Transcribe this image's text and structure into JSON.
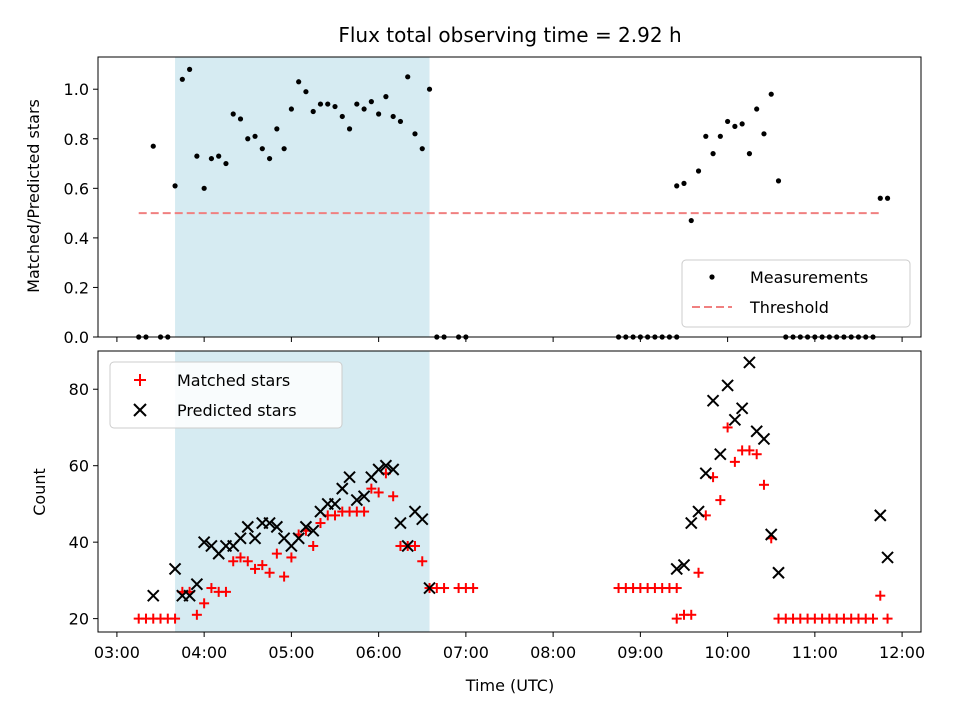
{
  "chart_data": [
    {
      "type": "scatter",
      "title": "Flux total observing time = 2.92 h",
      "xlabel": "",
      "ylabel": "Matched/Predicted stars",
      "ylim": [
        0,
        1.13
      ],
      "xlim": [
        "03:00",
        "12:00"
      ],
      "yticks": [
        "0.0",
        "0.2",
        "0.4",
        "0.6",
        "0.8",
        "1.0"
      ],
      "shaded_span": [
        "03:40",
        "06:35"
      ],
      "shade_color": "#add8e6",
      "legend": {
        "placement": "lower right",
        "entries": [
          "Measurements",
          "Threshold"
        ]
      },
      "series": [
        {
          "name": "Measurements",
          "marker": "dot",
          "color": "#000000",
          "points": [
            [
              "03:15",
              0
            ],
            [
              "03:20",
              0
            ],
            [
              "03:25",
              0.77
            ],
            [
              "03:30",
              0
            ],
            [
              "03:35",
              0
            ],
            [
              "03:40",
              0.61
            ],
            [
              "03:45",
              1.04
            ],
            [
              "03:50",
              1.08
            ],
            [
              "03:55",
              0.73
            ],
            [
              "04:00",
              0.6
            ],
            [
              "04:05",
              0.72
            ],
            [
              "04:10",
              0.73
            ],
            [
              "04:15",
              0.7
            ],
            [
              "04:20",
              0.9
            ],
            [
              "04:25",
              0.88
            ],
            [
              "04:30",
              0.8
            ],
            [
              "04:35",
              0.81
            ],
            [
              "04:40",
              0.76
            ],
            [
              "04:45",
              0.72
            ],
            [
              "04:50",
              0.84
            ],
            [
              "04:55",
              0.76
            ],
            [
              "05:00",
              0.92
            ],
            [
              "05:05",
              1.03
            ],
            [
              "05:10",
              0.99
            ],
            [
              "05:15",
              0.91
            ],
            [
              "05:20",
              0.94
            ],
            [
              "05:25",
              0.94
            ],
            [
              "05:30",
              0.93
            ],
            [
              "05:35",
              0.89
            ],
            [
              "05:40",
              0.84
            ],
            [
              "05:45",
              0.94
            ],
            [
              "05:50",
              0.92
            ],
            [
              "05:55",
              0.95
            ],
            [
              "06:00",
              0.9
            ],
            [
              "06:05",
              0.97
            ],
            [
              "06:10",
              0.89
            ],
            [
              "06:15",
              0.87
            ],
            [
              "06:20",
              1.05
            ],
            [
              "06:25",
              0.82
            ],
            [
              "06:30",
              0.76
            ],
            [
              "06:35",
              1.0
            ],
            [
              "06:40",
              0
            ],
            [
              "06:45",
              0
            ],
            [
              "06:55",
              0
            ],
            [
              "07:00",
              0
            ],
            [
              "08:45",
              0
            ],
            [
              "08:50",
              0
            ],
            [
              "08:55",
              0
            ],
            [
              "09:00",
              0
            ],
            [
              "09:05",
              0
            ],
            [
              "09:10",
              0
            ],
            [
              "09:15",
              0
            ],
            [
              "09:20",
              0
            ],
            [
              "09:25",
              0
            ],
            [
              "09:25",
              0.61
            ],
            [
              "09:30",
              0.62
            ],
            [
              "09:35",
              0.47
            ],
            [
              "09:40",
              0.67
            ],
            [
              "09:45",
              0.81
            ],
            [
              "09:50",
              0.74
            ],
            [
              "09:55",
              0.81
            ],
            [
              "10:00",
              0.87
            ],
            [
              "10:05",
              0.85
            ],
            [
              "10:10",
              0.86
            ],
            [
              "10:15",
              0.74
            ],
            [
              "10:20",
              0.92
            ],
            [
              "10:25",
              0.82
            ],
            [
              "10:30",
              0.98
            ],
            [
              "10:35",
              0.63
            ],
            [
              "10:40",
              0
            ],
            [
              "10:45",
              0
            ],
            [
              "10:50",
              0
            ],
            [
              "10:55",
              0
            ],
            [
              "11:00",
              0
            ],
            [
              "11:05",
              0
            ],
            [
              "11:10",
              0
            ],
            [
              "11:15",
              0
            ],
            [
              "11:20",
              0
            ],
            [
              "11:25",
              0
            ],
            [
              "11:30",
              0
            ],
            [
              "11:35",
              0
            ],
            [
              "11:40",
              0
            ],
            [
              "11:45",
              0.56
            ],
            [
              "11:50",
              0.56
            ]
          ]
        },
        {
          "name": "Threshold",
          "marker": "dashed-line",
          "color": "#f08080",
          "points": [
            [
              "03:15",
              0.5
            ],
            [
              "11:45",
              0.5
            ]
          ]
        }
      ]
    },
    {
      "type": "scatter",
      "title": "",
      "xlabel": "Time (UTC)",
      "ylabel": "Count",
      "ylim": [
        16.5,
        90
      ],
      "xlim": [
        "03:00",
        "12:00"
      ],
      "xticks": [
        "03:00",
        "04:00",
        "05:00",
        "06:00",
        "07:00",
        "08:00",
        "09:00",
        "10:00",
        "11:00",
        "12:00"
      ],
      "yticks": [
        "20",
        "40",
        "60",
        "80"
      ],
      "shaded_span": [
        "03:40",
        "06:35"
      ],
      "shade_color": "#add8e6",
      "legend": {
        "placement": "upper left",
        "entries": [
          "Matched stars",
          "Predicted stars"
        ]
      },
      "series": [
        {
          "name": "Matched stars",
          "marker": "plus",
          "color": "#ff0000",
          "points": [
            [
              "03:15",
              20
            ],
            [
              "03:20",
              20
            ],
            [
              "03:25",
              20
            ],
            [
              "03:30",
              20
            ],
            [
              "03:35",
              20
            ],
            [
              "03:40",
              20
            ],
            [
              "03:45",
              27
            ],
            [
              "03:50",
              27
            ],
            [
              "03:55",
              21
            ],
            [
              "04:00",
              24
            ],
            [
              "04:05",
              28
            ],
            [
              "04:10",
              27
            ],
            [
              "04:15",
              27
            ],
            [
              "04:20",
              35
            ],
            [
              "04:25",
              36
            ],
            [
              "04:30",
              35
            ],
            [
              "04:35",
              33
            ],
            [
              "04:40",
              34
            ],
            [
              "04:45",
              32
            ],
            [
              "04:50",
              37
            ],
            [
              "04:55",
              31
            ],
            [
              "05:00",
              36
            ],
            [
              "05:05",
              42
            ],
            [
              "05:10",
              43
            ],
            [
              "05:15",
              39
            ],
            [
              "05:20",
              45
            ],
            [
              "05:25",
              47
            ],
            [
              "05:30",
              47
            ],
            [
              "05:35",
              48
            ],
            [
              "05:40",
              48
            ],
            [
              "05:45",
              48
            ],
            [
              "05:50",
              48
            ],
            [
              "05:55",
              54
            ],
            [
              "06:00",
              53
            ],
            [
              "06:05",
              58
            ],
            [
              "06:10",
              52
            ],
            [
              "06:15",
              39
            ],
            [
              "06:20",
              39
            ],
            [
              "06:25",
              39
            ],
            [
              "06:30",
              35
            ],
            [
              "06:35",
              28
            ],
            [
              "06:40",
              28
            ],
            [
              "06:45",
              28
            ],
            [
              "06:55",
              28
            ],
            [
              "07:00",
              28
            ],
            [
              "07:05",
              28
            ],
            [
              "08:45",
              28
            ],
            [
              "08:50",
              28
            ],
            [
              "08:55",
              28
            ],
            [
              "09:00",
              28
            ],
            [
              "09:05",
              28
            ],
            [
              "09:10",
              28
            ],
            [
              "09:15",
              28
            ],
            [
              "09:20",
              28
            ],
            [
              "09:25",
              28
            ],
            [
              "09:25",
              20
            ],
            [
              "09:30",
              21
            ],
            [
              "09:35",
              21
            ],
            [
              "09:40",
              32
            ],
            [
              "09:45",
              47
            ],
            [
              "09:50",
              57
            ],
            [
              "09:55",
              51
            ],
            [
              "10:00",
              70
            ],
            [
              "10:05",
              61
            ],
            [
              "10:10",
              64
            ],
            [
              "10:15",
              64
            ],
            [
              "10:20",
              63
            ],
            [
              "10:25",
              55
            ],
            [
              "10:30",
              41
            ],
            [
              "10:35",
              20
            ],
            [
              "10:40",
              20
            ],
            [
              "10:45",
              20
            ],
            [
              "10:50",
              20
            ],
            [
              "10:55",
              20
            ],
            [
              "11:00",
              20
            ],
            [
              "11:05",
              20
            ],
            [
              "11:10",
              20
            ],
            [
              "11:15",
              20
            ],
            [
              "11:20",
              20
            ],
            [
              "11:25",
              20
            ],
            [
              "11:30",
              20
            ],
            [
              "11:35",
              20
            ],
            [
              "11:40",
              20
            ],
            [
              "11:45",
              26
            ],
            [
              "11:50",
              20
            ]
          ]
        },
        {
          "name": "Predicted stars",
          "marker": "x",
          "color": "#000000",
          "points": [
            [
              "03:25",
              26
            ],
            [
              "03:40",
              33
            ],
            [
              "03:45",
              26
            ],
            [
              "03:50",
              26
            ],
            [
              "03:55",
              29
            ],
            [
              "04:00",
              40
            ],
            [
              "04:05",
              39
            ],
            [
              "04:10",
              37
            ],
            [
              "04:15",
              39
            ],
            [
              "04:20",
              39
            ],
            [
              "04:25",
              41
            ],
            [
              "04:30",
              44
            ],
            [
              "04:35",
              41
            ],
            [
              "04:40",
              45
            ],
            [
              "04:45",
              45
            ],
            [
              "04:50",
              44
            ],
            [
              "04:55",
              41
            ],
            [
              "05:00",
              39
            ],
            [
              "05:05",
              41
            ],
            [
              "05:10",
              44
            ],
            [
              "05:15",
              43
            ],
            [
              "05:20",
              48
            ],
            [
              "05:25",
              50
            ],
            [
              "05:30",
              50
            ],
            [
              "05:35",
              54
            ],
            [
              "05:40",
              57
            ],
            [
              "05:45",
              51
            ],
            [
              "05:50",
              52
            ],
            [
              "05:55",
              57
            ],
            [
              "06:00",
              59
            ],
            [
              "06:05",
              60
            ],
            [
              "06:10",
              59
            ],
            [
              "06:15",
              45
            ],
            [
              "06:20",
              39
            ],
            [
              "06:25",
              48
            ],
            [
              "06:30",
              46
            ],
            [
              "06:35",
              28
            ],
            [
              "09:25",
              33
            ],
            [
              "09:30",
              34
            ],
            [
              "09:35",
              45
            ],
            [
              "09:40",
              48
            ],
            [
              "09:45",
              58
            ],
            [
              "09:50",
              77
            ],
            [
              "09:55",
              63
            ],
            [
              "10:00",
              81
            ],
            [
              "10:05",
              72
            ],
            [
              "10:10",
              75
            ],
            [
              "10:15",
              87
            ],
            [
              "10:20",
              69
            ],
            [
              "10:25",
              67
            ],
            [
              "10:30",
              42
            ],
            [
              "10:35",
              32
            ],
            [
              "11:45",
              47
            ],
            [
              "11:50",
              36
            ]
          ]
        }
      ]
    }
  ]
}
